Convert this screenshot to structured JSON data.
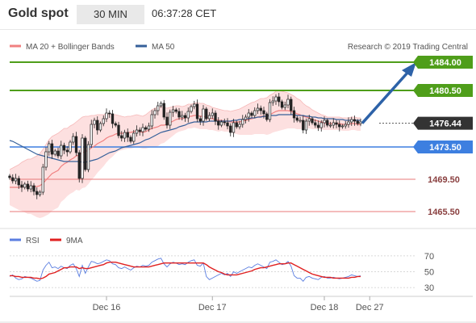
{
  "header": {
    "title": "Gold spot",
    "timeframe": "30 MIN",
    "time": "06:37:28 CET"
  },
  "legend": {
    "ma20_bollinger": "MA 20 + Bollinger Bands",
    "ma50": "MA 50",
    "copyright": "Research © 2019 Trading Central"
  },
  "colors": {
    "bullish": "#666666",
    "bearish": "#222222",
    "ma20": "#f08080",
    "bollinger_fill": "#fde0e0",
    "ma50": "#35609a",
    "target": "#4f9e1a",
    "pivot": "#3d7fe0",
    "support": "#e87878",
    "arrow": "#2d62a8",
    "rsi": "#5b7ee0",
    "rsi_ma": "#e02020"
  },
  "chart_data": [
    {
      "type": "candlestick",
      "title": "Gold spot",
      "timeframe": "30 MIN",
      "ylim": [
        1464,
        1486
      ],
      "current_price": 1476.44,
      "levels": [
        {
          "value": 1484.0,
          "label": "1484.00",
          "kind": "target"
        },
        {
          "value": 1480.5,
          "label": "1480.50",
          "kind": "target"
        },
        {
          "value": 1476.44,
          "label": "1476.44",
          "kind": "current"
        },
        {
          "value": 1473.5,
          "label": "1473.50",
          "kind": "pivot"
        },
        {
          "value": 1469.5,
          "label": "1469.50",
          "kind": "support"
        },
        {
          "value": 1465.5,
          "label": "1465.50",
          "kind": "support"
        }
      ],
      "x_ticks": [
        {
          "label": "Dec 16",
          "index": 32
        },
        {
          "label": "Dec 17",
          "index": 67
        },
        {
          "label": "Dec 18",
          "index": 104
        },
        {
          "label": "Dec 27",
          "index": 119
        }
      ],
      "n_slots": 122,
      "closes": [
        1469.7,
        1469.3,
        1469.6,
        1468.8,
        1468.5,
        1468.9,
        1468.3,
        1468.7,
        1468.0,
        1467.6,
        1467.9,
        1471.0,
        1472.9,
        1473.9,
        1472.6,
        1473.0,
        1472.4,
        1473.7,
        1473.1,
        1472.9,
        1474.1,
        1474.8,
        1472.8,
        1469.6,
        1474.6,
        1470.7,
        1473.8,
        1476.3,
        1476.8,
        1475.6,
        1476.4,
        1477.0,
        1477.7,
        1477.6,
        1476.4,
        1476.2,
        1474.9,
        1474.6,
        1475.3,
        1474.7,
        1474.2,
        1475.2,
        1475.6,
        1475.4,
        1475.9,
        1475.7,
        1476.1,
        1477.5,
        1478.0,
        1478.6,
        1478.9,
        1477.2,
        1476.2,
        1477.8,
        1478.1,
        1477.9,
        1477.2,
        1477.4,
        1477.1,
        1477.9,
        1478.5,
        1478.8,
        1477.0,
        1476.7,
        1478.2,
        1477.0,
        1477.4,
        1477.7,
        1476.7,
        1476.2,
        1476.6,
        1476.5,
        1476.1,
        1475.3,
        1476.5,
        1476.0,
        1476.3,
        1476.9,
        1477.2,
        1477.7,
        1477.4,
        1478.0,
        1478.3,
        1478.0,
        1477.6,
        1476.9,
        1479.0,
        1479.2,
        1479.7,
        1479.1,
        1478.4,
        1478.7,
        1479.4,
        1478.0,
        1477.1,
        1476.8,
        1476.8,
        1475.6,
        1476.7,
        1477.0,
        1476.5,
        1476.2,
        1475.9,
        1476.5,
        1476.8,
        1476.2,
        1476.2,
        1476.5,
        1476.3,
        1476.0,
        1476.1,
        1476.3,
        1476.6,
        1476.9,
        1476.7,
        1476.4,
        1476.6
      ],
      "ma20": [
        1468.5,
        1468.5,
        1468.5,
        1468.5,
        1468.6,
        1468.6,
        1468.6,
        1468.6,
        1468.6,
        1468.6,
        1468.7,
        1469.0,
        1469.4,
        1469.8,
        1470.2,
        1470.4,
        1470.6,
        1471.1,
        1471.4,
        1471.6,
        1471.9,
        1472.1,
        1472.4,
        1472.5,
        1472.8,
        1472.9,
        1473.1,
        1473.4,
        1473.6,
        1473.9,
        1474.1,
        1474.3,
        1474.6,
        1474.8,
        1474.9,
        1475.1,
        1475.2,
        1475.2,
        1475.2,
        1475.3,
        1475.3,
        1475.4,
        1475.5,
        1475.4,
        1475.3,
        1475.4,
        1475.6,
        1475.8,
        1475.9,
        1476.0,
        1476.2,
        1476.2,
        1476.3,
        1476.5,
        1476.7,
        1476.9,
        1477.0,
        1477.0,
        1477.1,
        1477.3,
        1477.3,
        1477.4,
        1477.4,
        1477.3,
        1477.3,
        1477.2,
        1477.1,
        1477.0,
        1476.9,
        1476.8,
        1476.8,
        1476.7,
        1476.7,
        1476.6,
        1476.6,
        1476.6,
        1476.6,
        1476.7,
        1476.8,
        1476.9,
        1477.0,
        1477.1,
        1477.2,
        1477.3,
        1477.3,
        1477.3,
        1477.5,
        1477.7,
        1477.9,
        1478.0,
        1478.0,
        1478.0,
        1478.0,
        1477.9,
        1477.8,
        1477.6,
        1477.5,
        1477.3,
        1477.2,
        1477.1,
        1476.9,
        1476.8,
        1476.7,
        1476.6,
        1476.5,
        1476.4,
        1476.4,
        1476.4,
        1476.4,
        1476.4,
        1476.3,
        1476.3,
        1476.3,
        1476.4,
        1476.4,
        1476.3,
        1476.3
      ],
      "ma50": [
        1474.3,
        1474.2,
        1474.0,
        1473.8,
        1473.6,
        1473.4,
        1473.2,
        1473.0,
        1472.8,
        1472.6,
        1472.5,
        1472.4,
        1472.3,
        1472.2,
        1472.1,
        1472.0,
        1471.9,
        1471.8,
        1471.7,
        1471.7,
        1471.7,
        1471.7,
        1471.7,
        1471.7,
        1471.6,
        1471.6,
        1471.7,
        1471.8,
        1471.9,
        1472.0,
        1472.2,
        1472.4,
        1472.6,
        1472.8,
        1472.9,
        1473.0,
        1473.2,
        1473.4,
        1473.5,
        1473.6,
        1473.7,
        1473.8,
        1473.9,
        1474.0,
        1474.2,
        1474.4,
        1474.5,
        1474.7,
        1474.9,
        1475.1,
        1475.3,
        1475.4,
        1475.5,
        1475.6,
        1475.7,
        1475.8,
        1476.0,
        1476.1,
        1476.2,
        1476.4,
        1476.5,
        1476.6,
        1476.6,
        1476.6,
        1476.6,
        1476.6,
        1476.7,
        1476.7,
        1476.7,
        1476.7,
        1476.7,
        1476.7,
        1476.7,
        1476.7,
        1476.8,
        1476.8,
        1476.9,
        1476.9,
        1477.0,
        1477.0,
        1477.1,
        1477.1,
        1477.2,
        1477.2,
        1477.3,
        1477.3,
        1477.4,
        1477.4,
        1477.4,
        1477.5,
        1477.5,
        1477.5,
        1477.5,
        1477.5,
        1477.5,
        1477.4,
        1477.4,
        1477.4,
        1477.3,
        1477.3,
        1477.2,
        1477.2,
        1477.1,
        1477.1,
        1477.0,
        1477.0,
        1477.0,
        1477.0,
        1476.9,
        1476.9,
        1476.9,
        1476.8,
        1476.8,
        1476.8,
        1476.8,
        1476.8,
        1476.8
      ],
      "bb_width": [
        2.2,
        2.4,
        2.6,
        2.8,
        3.0,
        3.2,
        3.4,
        3.4,
        3.6,
        3.8,
        4.0,
        4.2,
        4.4,
        4.6,
        4.6,
        4.6,
        4.6,
        4.4,
        4.4,
        4.2,
        4.2,
        4.2,
        4.2,
        4.4,
        4.4,
        4.4,
        4.2,
        4.0,
        3.8,
        3.6,
        3.4,
        3.2,
        3.0,
        2.8,
        2.6,
        2.4,
        2.2,
        2.1,
        2.0,
        2.0,
        2.0,
        2.0,
        2.0,
        2.0,
        2.0,
        2.1,
        2.2,
        2.3,
        2.4,
        2.4,
        2.3,
        2.2,
        2.0,
        1.9,
        1.8,
        1.7,
        1.6,
        1.5,
        1.5,
        1.5,
        1.5,
        1.5,
        1.6,
        1.6,
        1.6,
        1.5,
        1.5,
        1.4,
        1.4,
        1.4,
        1.3,
        1.3,
        1.3,
        1.3,
        1.4,
        1.5,
        1.6,
        1.7,
        1.8,
        1.9,
        2.0,
        2.0,
        2.1,
        2.2,
        2.2,
        2.3,
        2.4,
        2.4,
        2.5,
        2.5,
        2.4,
        2.3,
        2.2,
        2.1,
        2.0,
        1.9,
        1.8,
        1.6,
        1.4,
        1.3,
        1.2,
        1.1,
        1.0,
        0.9,
        0.9,
        0.8,
        0.8,
        0.8,
        0.8,
        0.8,
        0.8,
        0.8,
        0.8,
        0.8,
        0.8,
        0.8,
        0.8
      ],
      "forecast": {
        "from_index": 116,
        "from_value": 1476.44,
        "to_value": 1484.0
      }
    },
    {
      "type": "line",
      "title": "RSI",
      "series": [
        {
          "name": "RSI",
          "color": "#5b7ee0",
          "values": [
            44,
            46,
            42,
            40,
            41,
            44,
            43,
            42,
            40,
            38,
            39,
            52,
            58,
            62,
            55,
            56,
            54,
            57,
            55,
            54,
            58,
            60,
            54,
            44,
            58,
            48,
            56,
            63,
            62,
            60,
            61,
            63,
            65,
            64,
            60,
            59,
            55,
            54,
            56,
            54,
            52,
            55,
            57,
            56,
            58,
            57,
            58,
            62,
            64,
            66,
            67,
            60,
            56,
            60,
            62,
            61,
            59,
            60,
            59,
            62,
            64,
            65,
            58,
            57,
            61,
            44,
            40,
            42,
            44,
            46,
            48,
            46,
            48,
            44,
            50,
            48,
            50,
            52,
            54,
            56,
            55,
            58,
            60,
            58,
            56,
            54,
            62,
            63,
            65,
            62,
            59,
            60,
            63,
            57,
            45,
            42,
            42,
            38,
            43,
            44,
            42,
            41,
            40,
            43,
            44,
            42,
            42,
            43,
            42,
            41,
            42,
            43,
            44,
            46,
            45,
            44,
            45
          ]
        },
        {
          "name": "9MA",
          "color": "#e02020",
          "values": [
            45,
            45,
            44,
            44,
            43,
            43,
            43,
            43,
            42,
            42,
            41,
            42,
            44,
            47,
            48,
            49,
            51,
            53,
            55,
            55,
            56,
            56,
            56,
            54,
            55,
            54,
            54,
            55,
            56,
            57,
            58,
            59,
            61,
            62,
            62,
            62,
            61,
            60,
            59,
            58,
            57,
            56,
            56,
            56,
            56,
            56,
            56,
            57,
            58,
            59,
            60,
            61,
            61,
            61,
            61,
            61,
            61,
            61,
            61,
            61,
            61,
            61,
            61,
            61,
            61,
            59,
            56,
            54,
            52,
            50,
            49,
            47,
            46,
            46,
            46,
            46,
            47,
            48,
            49,
            50,
            51,
            53,
            54,
            55,
            55,
            56,
            57,
            58,
            59,
            60,
            60,
            60,
            61,
            61,
            59,
            57,
            55,
            53,
            51,
            49,
            47,
            46,
            45,
            44,
            43,
            43,
            43,
            42,
            42,
            42,
            42,
            42,
            42,
            43,
            43,
            44,
            44
          ]
        }
      ],
      "y_ticks": [
        30,
        50,
        70
      ],
      "ylim": [
        22,
        78
      ],
      "x_ticks": [
        "Dec 16",
        "Dec 17",
        "Dec 18",
        "Dec 27"
      ]
    }
  ]
}
